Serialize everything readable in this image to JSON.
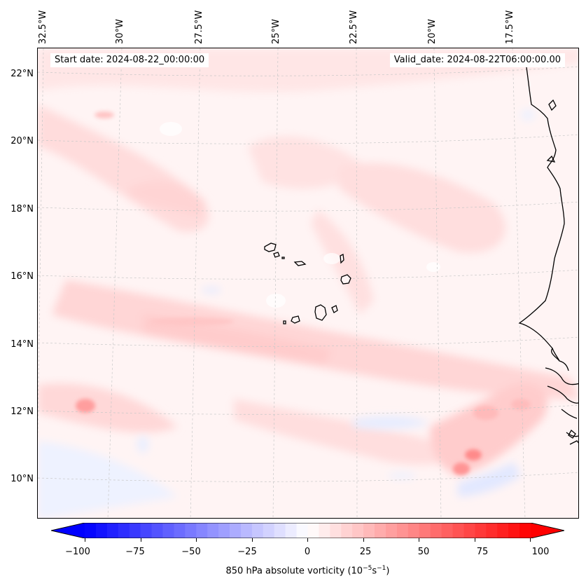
{
  "header": {
    "start_date": "Start date: 2024-08-22_00:00:00",
    "valid_date": "Valid_date: 2024-08-22T06:00:00.00"
  },
  "longitude_labels": [
    "32.5°W",
    "30°W",
    "27.5°W",
    "25°W",
    "22.5°W",
    "20°W",
    "17.5°W"
  ],
  "latitude_labels": [
    "22°N",
    "20°N",
    "18°N",
    "16°N",
    "14°N",
    "12°N",
    "10°N"
  ],
  "colorbar": {
    "ticks": [
      "−100",
      "−75",
      "−50",
      "−25",
      "0",
      "25",
      "50",
      "75",
      "100"
    ],
    "label_prefix": "850 hPa absolute vorticity (10",
    "label_sup1": "−5",
    "label_mid": "s",
    "label_sup2": "−1",
    "label_suffix": ")",
    "min": -100,
    "max": 100,
    "negative_color": "#0000ff",
    "positive_color": "#ff0000"
  },
  "colors": {
    "coastline": "#000000",
    "gridline": "#c8c8c8",
    "background_field": "#fff3f3"
  }
}
